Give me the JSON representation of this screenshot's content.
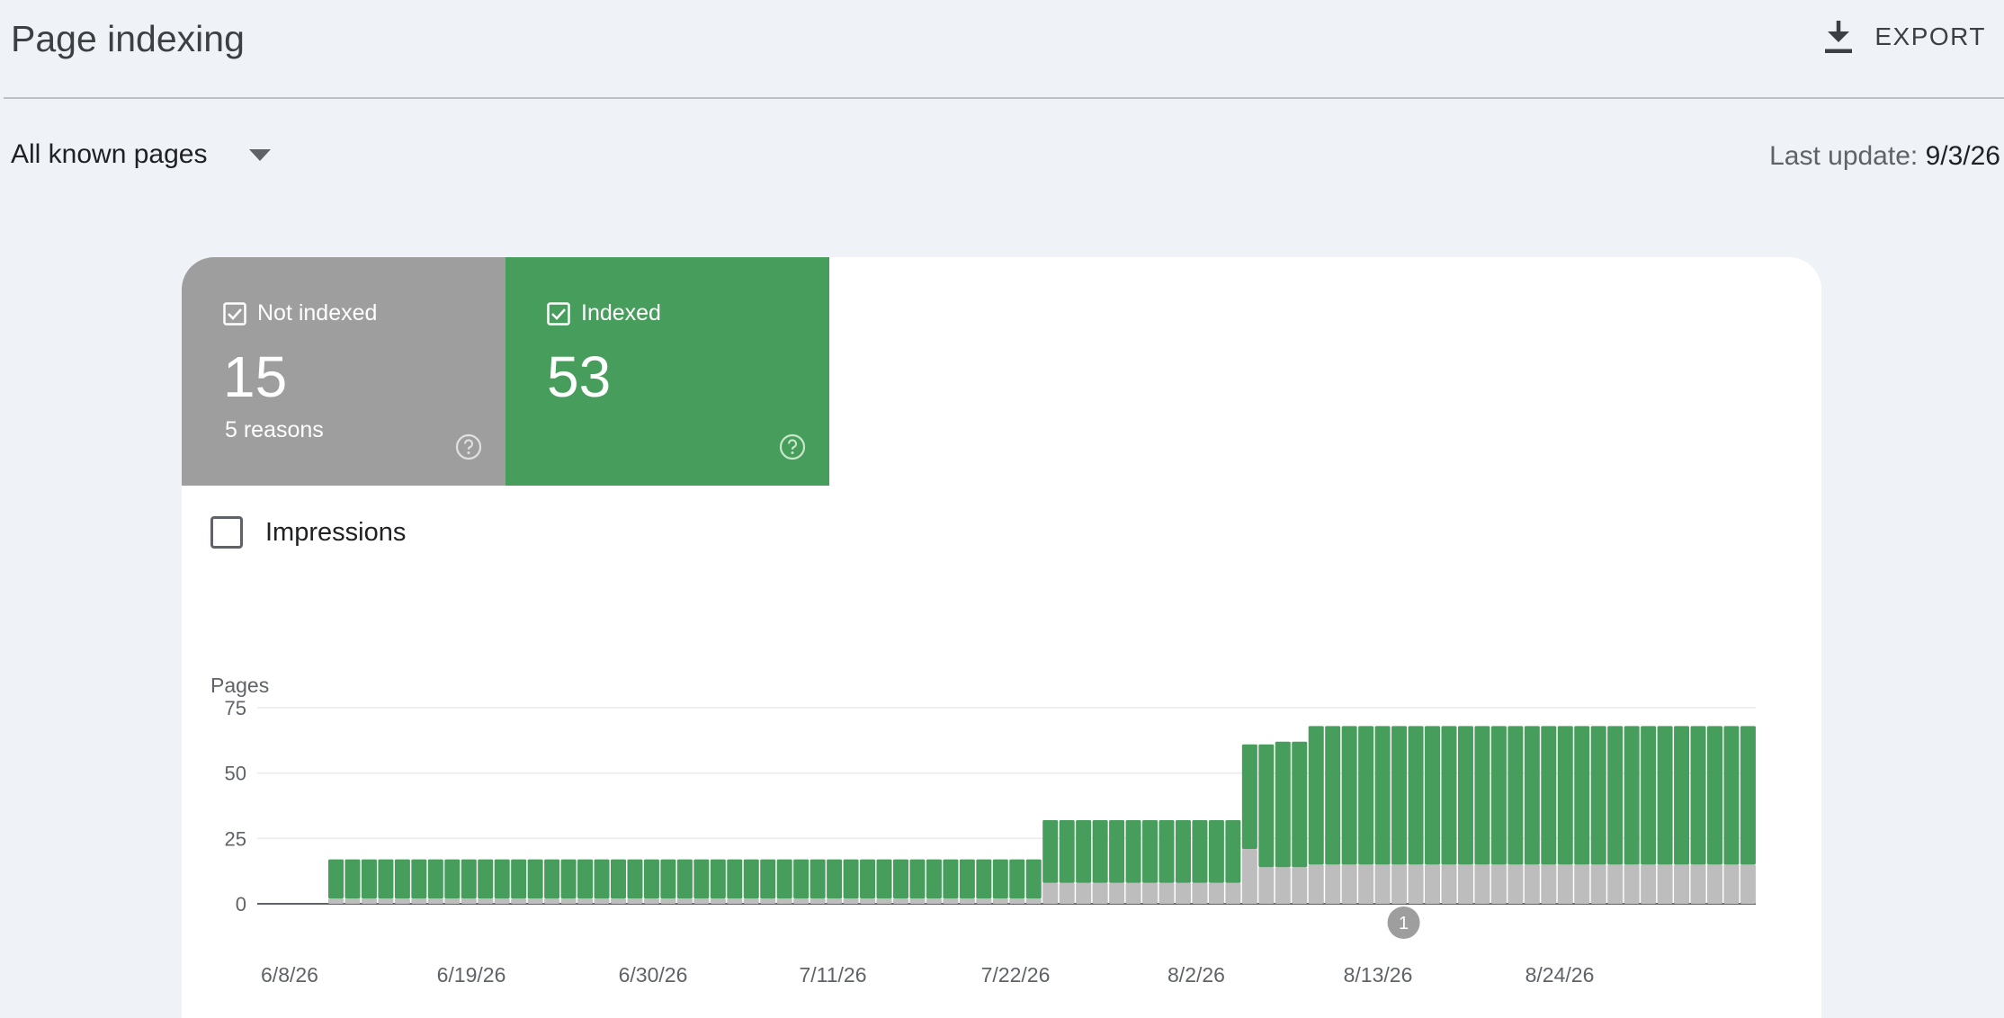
{
  "header": {
    "title": "Page indexing",
    "export_label": "EXPORT"
  },
  "filter": {
    "selected": "All known pages",
    "last_update_label": "Last update:",
    "last_update_value": "9/3/26"
  },
  "tiles": {
    "not_indexed": {
      "label": "Not indexed",
      "count": "15",
      "sub": "5 reasons",
      "checked": true,
      "color": "#9e9e9e"
    },
    "indexed": {
      "label": "Indexed",
      "count": "53",
      "checked": true,
      "color": "#479e5c"
    }
  },
  "impressions": {
    "label": "Impressions",
    "checked": false
  },
  "chart_data": {
    "type": "bar",
    "stacked": true,
    "ylabel": "Pages",
    "ylim": [
      0,
      75
    ],
    "yticks": [
      0,
      25,
      50,
      75
    ],
    "xtick_labels": [
      "6/8/26",
      "6/19/26",
      "6/30/26",
      "7/11/26",
      "7/22/26",
      "8/2/26",
      "8/13/26",
      "8/24/26"
    ],
    "categories": [
      "6/9/26",
      "6/10/26",
      "6/11/26",
      "6/12/26",
      "6/13/26",
      "6/14/26",
      "6/15/26",
      "6/16/26",
      "6/17/26",
      "6/18/26",
      "6/19/26",
      "6/20/26",
      "6/21/26",
      "6/22/26",
      "6/23/26",
      "6/24/26",
      "6/25/26",
      "6/26/26",
      "6/27/26",
      "6/28/26",
      "6/29/26",
      "6/30/26",
      "7/1/26",
      "7/2/26",
      "7/3/26",
      "7/4/26",
      "7/5/26",
      "7/6/26",
      "7/7/26",
      "7/8/26",
      "7/9/26",
      "7/10/26",
      "7/11/26",
      "7/12/26",
      "7/13/26",
      "7/14/26",
      "7/15/26",
      "7/16/26",
      "7/17/26",
      "7/18/26",
      "7/19/26",
      "7/20/26",
      "7/21/26",
      "7/22/26",
      "7/23/26",
      "7/24/26",
      "7/25/26",
      "7/26/26",
      "7/27/26",
      "7/28/26",
      "7/29/26",
      "7/30/26",
      "7/31/26",
      "8/1/26",
      "8/2/26",
      "8/3/26",
      "8/4/26",
      "8/5/26",
      "8/6/26",
      "8/7/26",
      "8/8/26",
      "8/9/26",
      "8/10/26",
      "8/11/26",
      "8/12/26",
      "8/13/26",
      "8/14/26",
      "8/15/26",
      "8/16/26",
      "8/17/26",
      "8/18/26",
      "8/19/26",
      "8/20/26",
      "8/21/26",
      "8/22/26",
      "8/23/26",
      "8/24/26",
      "8/25/26",
      "8/26/26",
      "8/27/26",
      "8/28/26",
      "8/29/26",
      "8/30/26",
      "8/31/26",
      "9/1/26",
      "9/2/26"
    ],
    "series": [
      {
        "name": "Not indexed",
        "color": "#bdbdbd",
        "values": [
          2,
          2,
          2,
          2,
          2,
          2,
          2,
          2,
          2,
          2,
          2,
          2,
          2,
          2,
          2,
          2,
          2,
          2,
          2,
          2,
          2,
          2,
          2,
          2,
          2,
          2,
          2,
          2,
          2,
          2,
          2,
          2,
          2,
          2,
          2,
          2,
          2,
          2,
          2,
          2,
          2,
          2,
          2,
          8,
          8,
          8,
          8,
          8,
          8,
          8,
          8,
          8,
          8,
          8,
          8,
          21,
          14,
          14,
          14,
          15,
          15,
          15,
          15,
          15,
          15,
          15,
          15,
          15,
          15,
          15,
          15,
          15,
          15,
          15,
          15,
          15,
          15,
          15,
          15,
          15,
          15,
          15,
          15,
          15,
          15,
          15
        ]
      },
      {
        "name": "Indexed",
        "color": "#479e5c",
        "values": [
          15,
          15,
          15,
          15,
          15,
          15,
          15,
          15,
          15,
          15,
          15,
          15,
          15,
          15,
          15,
          15,
          15,
          15,
          15,
          15,
          15,
          15,
          15,
          15,
          15,
          15,
          15,
          15,
          15,
          15,
          15,
          15,
          15,
          15,
          15,
          15,
          15,
          15,
          15,
          15,
          15,
          15,
          15,
          24,
          24,
          24,
          24,
          24,
          24,
          24,
          24,
          24,
          24,
          24,
          24,
          40,
          47,
          48,
          48,
          53,
          53,
          53,
          53,
          53,
          53,
          53,
          53,
          53,
          53,
          53,
          53,
          53,
          53,
          53,
          53,
          53,
          53,
          53,
          53,
          53,
          53,
          53,
          53,
          53,
          53,
          53
        ]
      }
    ],
    "annotations": [
      {
        "label": "1",
        "date": "8/12/26"
      }
    ],
    "grid": true,
    "legend": "none"
  }
}
